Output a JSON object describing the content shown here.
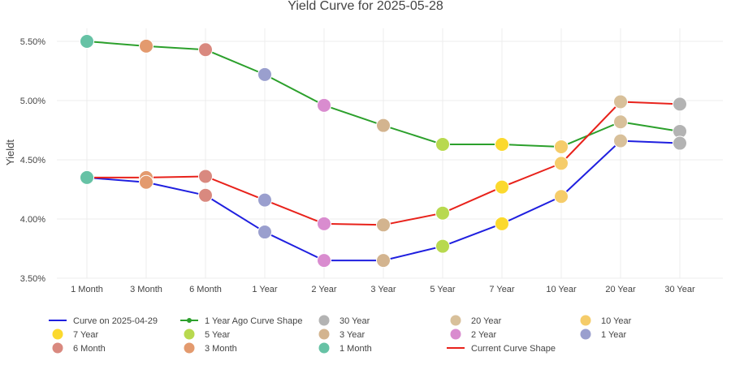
{
  "chart_data": {
    "type": "line",
    "title": "Yield Curve for 2025-05-28",
    "xlabel": "",
    "ylabel": "Yieldt",
    "ylim": [
      3.5,
      5.6
    ],
    "yticks": [
      3.5,
      4.0,
      4.5,
      5.0,
      5.5
    ],
    "ytick_labels": [
      "3.50%",
      "4.00%",
      "4.50%",
      "5.00%",
      "5.50%"
    ],
    "grid": true,
    "legend_position": "bottom",
    "categories": [
      "1 Month",
      "3 Month",
      "6 Month",
      "1 Year",
      "2 Year",
      "3 Year",
      "5 Year",
      "7 Year",
      "10 Year",
      "20 Year",
      "30 Year"
    ],
    "series": [
      {
        "name": "Curve on 2025-04-29",
        "color": "#1f1fdf",
        "values": [
          4.35,
          4.31,
          4.2,
          3.89,
          3.65,
          3.65,
          3.77,
          3.96,
          4.19,
          4.66,
          4.64
        ]
      },
      {
        "name": "1 Year Ago Curve Shape",
        "color": "#2ca02c",
        "values": [
          5.5,
          5.46,
          5.43,
          5.22,
          4.96,
          4.79,
          4.63,
          4.63,
          4.61,
          4.82,
          4.74
        ]
      },
      {
        "name": "Current Curve Shape",
        "color": "#e8221b",
        "values": [
          4.35,
          4.35,
          4.36,
          4.16,
          3.96,
          3.95,
          4.05,
          4.27,
          4.47,
          4.99,
          4.97
        ]
      }
    ],
    "marker_colors": {
      "1 Month": "#66c2a5",
      "3 Month": "#e39a6e",
      "6 Month": "#d9897f",
      "1 Year": "#9a9fce",
      "2 Year": "#d98ccf",
      "3 Year": "#d3b48f",
      "5 Year": "#b8d94f",
      "7 Year": "#fbd92e",
      "10 Year": "#f5cc6a",
      "20 Year": "#d8c09a",
      "30 Year": "#b3b3b3"
    },
    "legend": [
      {
        "label": "Curve on 2025-04-29",
        "kind": "line",
        "color": "#1f1fdf"
      },
      {
        "label": "1 Year Ago Curve Shape",
        "kind": "linemarker",
        "color": "#2ca02c"
      },
      {
        "label": "30 Year",
        "kind": "marker",
        "color": "#b3b3b3"
      },
      {
        "label": "20 Year",
        "kind": "marker",
        "color": "#d8c09a"
      },
      {
        "label": "10 Year",
        "kind": "marker",
        "color": "#f5cc6a"
      },
      {
        "label": "7 Year",
        "kind": "marker",
        "color": "#fbd92e"
      },
      {
        "label": "5 Year",
        "kind": "marker",
        "color": "#b8d94f"
      },
      {
        "label": "3 Year",
        "kind": "marker",
        "color": "#d3b48f"
      },
      {
        "label": "2 Year",
        "kind": "marker",
        "color": "#d98ccf"
      },
      {
        "label": "1 Year",
        "kind": "marker",
        "color": "#9a9fce"
      },
      {
        "label": "6 Month",
        "kind": "marker",
        "color": "#d9897f"
      },
      {
        "label": "3 Month",
        "kind": "marker",
        "color": "#e39a6e"
      },
      {
        "label": "1 Month",
        "kind": "marker",
        "color": "#66c2a5"
      },
      {
        "label": "Current Curve Shape",
        "kind": "line",
        "color": "#e8221b"
      }
    ]
  }
}
